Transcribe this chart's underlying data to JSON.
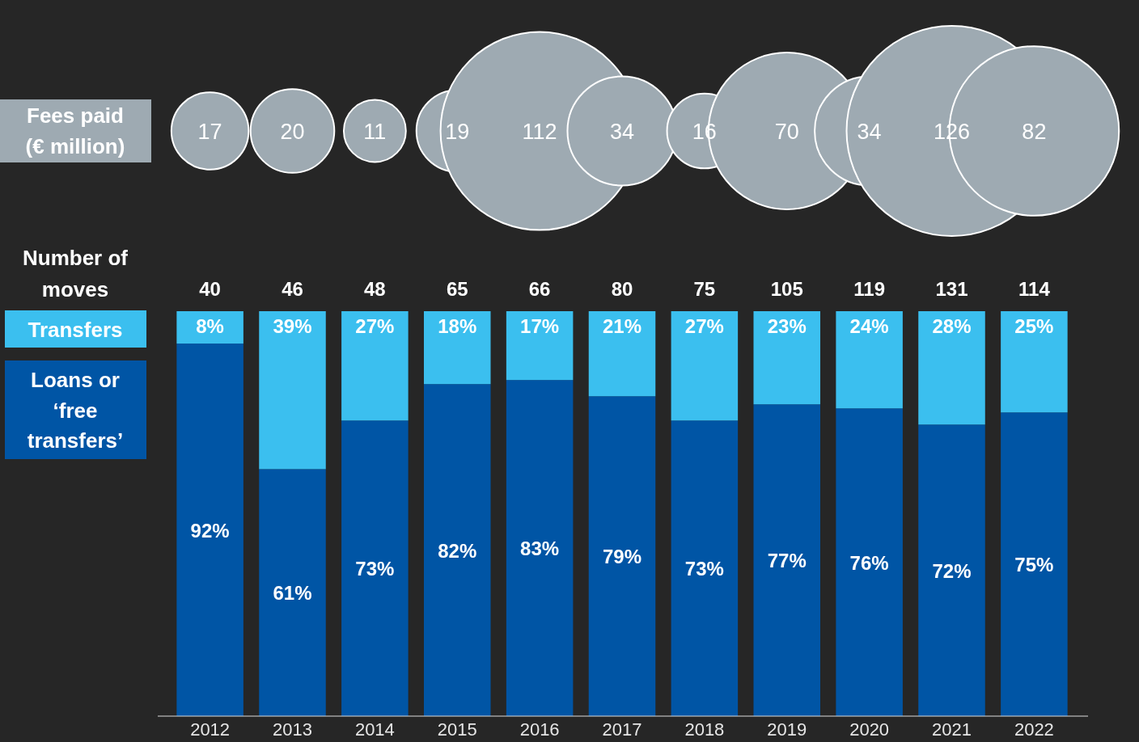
{
  "chart_data": [
    {
      "type": "other",
      "ylabel": "Fees paid (€ million)",
      "color": "#9eaab2",
      "data_labels": true,
      "values": [
        17,
        20,
        11,
        19,
        112,
        34,
        16,
        70,
        34,
        126,
        82
      ]
    },
    {
      "type": "bar",
      "stacked": true,
      "categories": [
        "2012",
        "2013",
        "2014",
        "2015",
        "2016",
        "2017",
        "2018",
        "2019",
        "2020",
        "2021",
        "2022"
      ],
      "ylim": [
        0,
        100
      ],
      "legend": "left",
      "annotations": [
        "Number of moves",
        {
          "text": "40",
          "x": "2012",
          "y": 100
        },
        {
          "text": "46",
          "x": "2013",
          "y": 100
        },
        {
          "text": "48",
          "x": "2014",
          "y": 100
        },
        {
          "text": "65",
          "x": "2015",
          "y": 100
        },
        {
          "text": "66",
          "x": "2016",
          "y": 100
        },
        {
          "text": "80",
          "x": "2017",
          "y": 100
        },
        {
          "text": "75",
          "x": "2018",
          "y": 100
        },
        {
          "text": "105",
          "x": "2019",
          "y": 100
        },
        {
          "text": "119",
          "x": "2020",
          "y": 100
        },
        {
          "text": "131",
          "x": "2021",
          "y": 100
        },
        {
          "text": "114",
          "x": "2022",
          "y": 100
        }
      ],
      "series": [
        {
          "name": "Loans or ‘free transfers’",
          "color": "#0055a5",
          "values": [
            92,
            61,
            73,
            82,
            83,
            79,
            73,
            77,
            76,
            72,
            75
          ],
          "value_labels": [
            "92%",
            "61%",
            "73%",
            "82%",
            "83%",
            "79%",
            "73%",
            "77%",
            "76%",
            "72%",
            "75%"
          ]
        },
        {
          "name": "Transfers",
          "color": "#3bbfef",
          "values": [
            8,
            39,
            27,
            18,
            17,
            21,
            27,
            23,
            24,
            28,
            25
          ],
          "value_labels": [
            "8%",
            "39%",
            "27%",
            "18%",
            "17%",
            "21%",
            "27%",
            "23%",
            "24%",
            "28%",
            "25%"
          ]
        }
      ]
    }
  ]
}
